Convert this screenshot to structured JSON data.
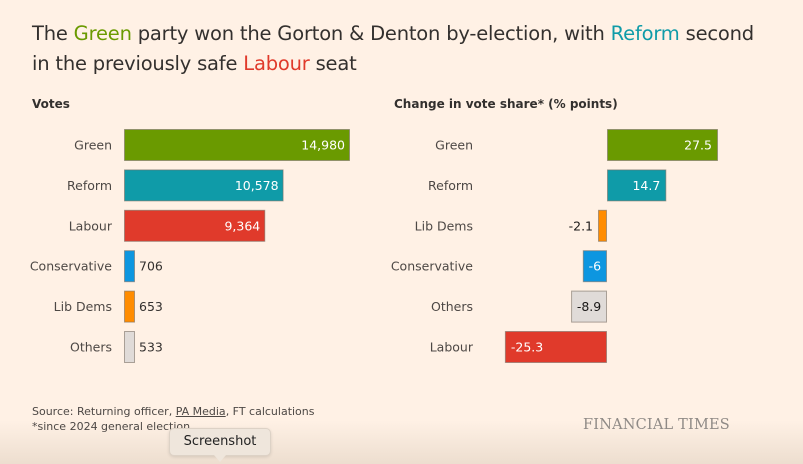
{
  "headline": {
    "parts": [
      {
        "text": "The ",
        "style": "plain"
      },
      {
        "text": "Green",
        "style": "green"
      },
      {
        "text": " party won the Gorton & Denton by-election, with ",
        "style": "plain"
      },
      {
        "text": "Reform",
        "style": "reform"
      },
      {
        "text": " second in the previously safe ",
        "style": "plain"
      },
      {
        "text": "Labour",
        "style": "labour"
      },
      {
        "text": " seat",
        "style": "plain"
      }
    ]
  },
  "colors": {
    "green": "#6a9a00",
    "reform": "#0f9ba8",
    "labour": "#e03a2b",
    "conservative": "#0d96e0",
    "libdems": "#ff8c00",
    "others": "#e0dbd8",
    "text": "#33302e",
    "background": "#fff1e5"
  },
  "chart_data": [
    {
      "type": "bar",
      "orientation": "horizontal",
      "title": "Votes",
      "xlabel": "",
      "ylabel": "",
      "categories": [
        "Green",
        "Reform",
        "Labour",
        "Conservative",
        "Lib Dems",
        "Others"
      ],
      "values": [
        14980,
        10578,
        9364,
        706,
        653,
        533
      ],
      "labels": [
        "14,980",
        "10,578",
        "9,364",
        "706",
        "653",
        "533"
      ],
      "bar_colors": [
        "#6a9a00",
        "#0f9ba8",
        "#e03a2b",
        "#0d96e0",
        "#ff8c00",
        "#e0dbd8"
      ],
      "xlim": [
        0,
        14980
      ],
      "grid": false
    },
    {
      "type": "bar",
      "orientation": "horizontal",
      "title": "Change in vote share* (% points)",
      "xlabel": "",
      "ylabel": "",
      "categories": [
        "Green",
        "Reform",
        "Lib Dems",
        "Conservative",
        "Others",
        "Labour"
      ],
      "values": [
        27.5,
        14.7,
        -2.1,
        -6,
        -8.9,
        -25.3
      ],
      "labels": [
        "27.5",
        "14.7",
        "-2.1",
        "-6",
        "-8.9",
        "-25.3"
      ],
      "bar_colors": [
        "#6a9a00",
        "#0f9ba8",
        "#ff8c00",
        "#0d96e0",
        "#e0dbd8",
        "#e03a2b"
      ],
      "xlim": [
        -25.3,
        27.5
      ],
      "grid": false
    }
  ],
  "footer": {
    "source_prefix": "Source: Returning officer, ",
    "source_link": "PA Media",
    "source_suffix": ", FT calculations",
    "note": "*since 2024 general election"
  },
  "brand": "FINANCIAL TIMES",
  "tooltip": "Screenshot"
}
